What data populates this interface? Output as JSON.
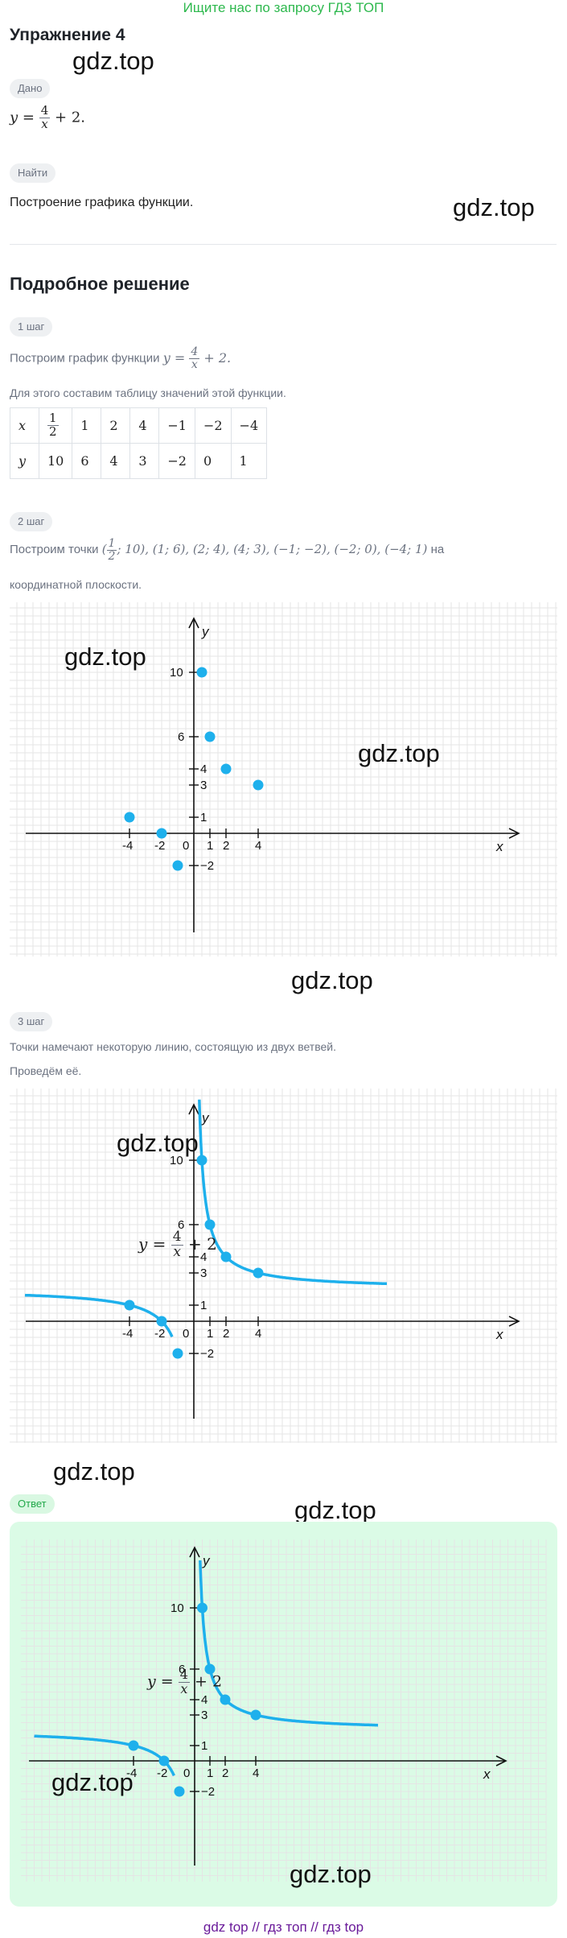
{
  "banner": "Ищите нас по запросу ГДЗ ТОП",
  "exercise_title": "Упражнение 4",
  "watermark": "gdz.top",
  "given_chip": "Дано",
  "given_formula": {
    "y": "y",
    "eq": "=",
    "num": "4",
    "den": "x",
    "tail": "+ 2."
  },
  "find_chip": "Найти",
  "find_text": "Построение графика функции.",
  "solution_title": "Подробное решение",
  "step1": {
    "chip": "1 шаг",
    "text_prefix": "Построим график функции",
    "formula_tail": "+ 2.",
    "text2": "Для этого составим таблицу значений этой функции."
  },
  "table": {
    "x_label": "x",
    "y_label": "y",
    "x_values": [
      "1/2",
      "1",
      "2",
      "4",
      "−1",
      "−2",
      "−4"
    ],
    "y_values": [
      "10",
      "6",
      "4",
      "3",
      "−2",
      "0",
      "1"
    ]
  },
  "step2": {
    "chip": "2 шаг",
    "text_prefix": "Построим точки",
    "points_text": ", (1; 6), (2; 4), (4; 3), (−1; −2), (−2; 0), (−4; 1)",
    "text_suffix": "на",
    "text2": "координатной плоскости."
  },
  "step3": {
    "chip": "3 шаг",
    "text1": "Точки намечают некоторую линию, состоящую из двух ветвей.",
    "text2": "Проведём её."
  },
  "answer_chip": "Ответ",
  "graph_formula": {
    "y": "y",
    "eq": "=",
    "num": "4",
    "den": "x",
    "tail": "+ 2"
  },
  "axis_labels": {
    "x": "x",
    "y": "y"
  },
  "tick_labels_x": [
    "-4",
    "-2",
    "0",
    "1",
    "2",
    "4"
  ],
  "tick_labels_y": [
    "10",
    "6",
    "4",
    "3",
    "1",
    "−2"
  ],
  "colors": {
    "curve": "#1eb0ec",
    "grid": "#e5e5e5",
    "banner": "#2db84d",
    "footer": "#6a1b9a"
  },
  "footer": {
    "l1": "gdz top",
    "sep": "//",
    "l2": "гдз топ",
    "l3": "гдз top"
  },
  "chart_data": {
    "type": "scatter",
    "title": "",
    "xlabel": "x",
    "ylabel": "y",
    "points": [
      [
        0.5,
        10
      ],
      [
        1,
        6
      ],
      [
        2,
        4
      ],
      [
        4,
        3
      ],
      [
        -1,
        -2
      ],
      [
        -2,
        0
      ],
      [
        -4,
        1
      ]
    ],
    "function": "y = 4/x + 2",
    "grid": true
  }
}
